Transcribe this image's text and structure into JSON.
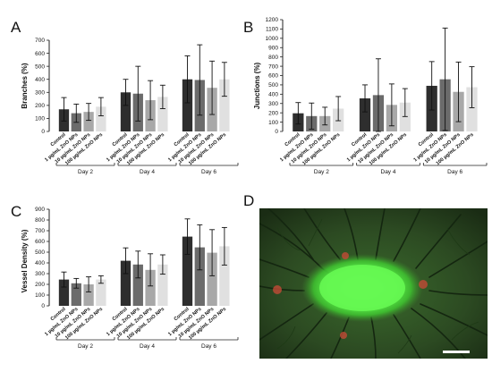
{
  "panels": [
    {
      "letter": "A",
      "chart_data": {
        "type": "bar",
        "ylabel": "Branches (%)",
        "ylim": [
          0,
          700
        ],
        "yticks": [
          0,
          100,
          200,
          300,
          400,
          500,
          600,
          700
        ],
        "categories": [
          "Control",
          "1 µg/mL ZnO NPs",
          "10 µg/mL ZnO NPs",
          "100 µg/mL ZnO NPs"
        ],
        "groups": [
          "Day 2",
          "Day 4",
          "Day 6"
        ],
        "colors": [
          "#2e2e2e",
          "#6b6b6b",
          "#a8a8a8",
          "#e0e0e0"
        ],
        "series": [
          {
            "group": "Day 2",
            "values": [
              170,
              140,
              150,
              190
            ],
            "errors": [
              90,
              70,
              65,
              70
            ]
          },
          {
            "group": "Day 4",
            "values": [
              300,
              290,
              240,
              265
            ],
            "errors": [
              100,
              210,
              150,
              90
            ]
          },
          {
            "group": "Day 6",
            "values": [
              400,
              395,
              335,
              400
            ],
            "errors": [
              180,
              270,
              205,
              130
            ]
          }
        ]
      }
    },
    {
      "letter": "B",
      "chart_data": {
        "type": "bar",
        "ylabel": "Junctions (%)",
        "ylim": [
          0,
          1200
        ],
        "yticks": [
          0,
          100,
          200,
          300,
          400,
          500,
          600,
          700,
          800,
          900,
          1000,
          1100,
          1200
        ],
        "categories": [
          "Control",
          "1 µg/mL ZnO NPs",
          "10 µg/mL ZnO NPs",
          "100 µg/mL ZnO NPs"
        ],
        "groups": [
          "Day 2",
          "Day 4",
          "Day 6"
        ],
        "colors": [
          "#2e2e2e",
          "#6b6b6b",
          "#a8a8a8",
          "#e0e0e0"
        ],
        "series": [
          {
            "group": "Day 2",
            "values": [
              195,
              165,
              165,
              245
            ],
            "errors": [
              115,
              140,
              95,
              130
            ]
          },
          {
            "group": "Day 4",
            "values": [
              355,
              390,
              285,
              310
            ],
            "errors": [
              145,
              390,
              225,
              150
            ]
          },
          {
            "group": "Day 6",
            "values": [
              490,
              560,
              425,
              475
            ],
            "errors": [
              260,
              550,
              320,
              220
            ]
          }
        ]
      }
    },
    {
      "letter": "C",
      "chart_data": {
        "type": "bar",
        "ylabel": "Vessel Density (%)",
        "ylim": [
          0,
          900
        ],
        "yticks": [
          0,
          100,
          200,
          300,
          400,
          500,
          600,
          700,
          800,
          900
        ],
        "categories": [
          "Control",
          "1 µg/mL ZnO NPs",
          "10 µg/mL ZnO NPs",
          "100 µg/mL ZnO NPs"
        ],
        "groups": [
          "Day 2",
          "Day 4",
          "Day 6"
        ],
        "colors": [
          "#2e2e2e",
          "#6b6b6b",
          "#a8a8a8",
          "#e0e0e0"
        ],
        "series": [
          {
            "group": "Day 2",
            "values": [
              245,
              210,
              200,
              245
            ],
            "errors": [
              70,
              45,
              70,
              35
            ]
          },
          {
            "group": "Day 4",
            "values": [
              420,
              385,
              335,
              385
            ],
            "errors": [
              120,
              125,
              150,
              90
            ]
          },
          {
            "group": "Day 6",
            "values": [
              645,
              545,
              495,
              555
            ],
            "errors": [
              165,
              210,
              215,
              175
            ]
          }
        ]
      }
    }
  ],
  "photo": {
    "letter": "D",
    "colors": {
      "background": "#2c4a22",
      "glow": "#5cf24a",
      "vessel": "#142610",
      "spot": "#c24a36"
    }
  }
}
